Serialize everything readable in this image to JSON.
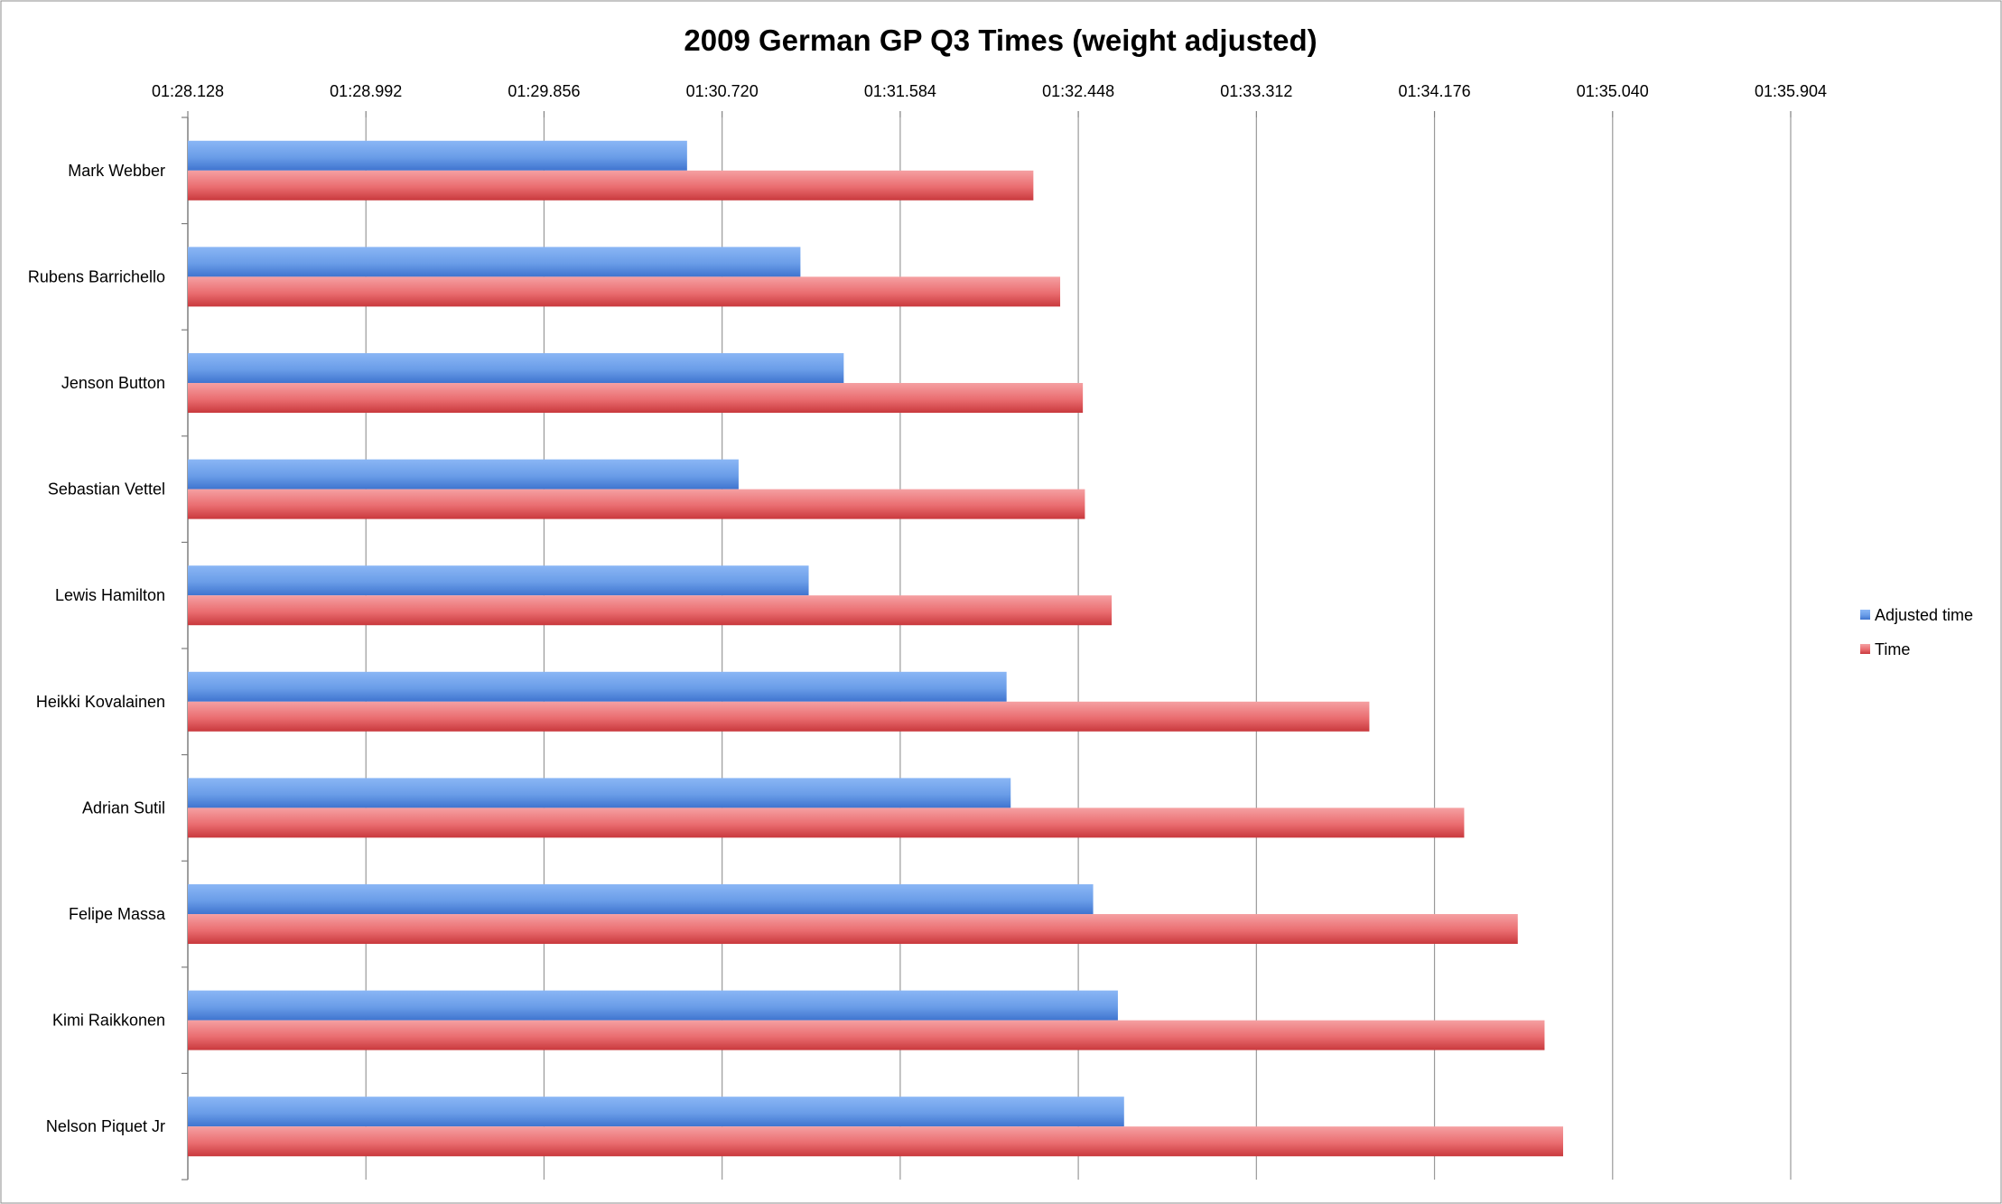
{
  "chart_data": {
    "type": "bar",
    "orientation": "horizontal",
    "title": "2009 German GP Q3 Times (weight adjusted)",
    "xlabel": "",
    "ylabel": "",
    "x_axis_position": "top",
    "xlim_seconds": [
      88.128,
      95.904
    ],
    "x_tick_labels": [
      "01:28.128",
      "01:28.992",
      "01:29.856",
      "01:30.720",
      "01:31.584",
      "01:32.448",
      "01:33.312",
      "01:34.176",
      "01:35.040",
      "01:35.904"
    ],
    "categories": [
      "Mark Webber",
      "Rubens Barrichello",
      "Jenson Button",
      "Sebastian Vettel",
      "Lewis Hamilton",
      "Heikki Kovalainen",
      "Adrian Sutil",
      "Felipe Massa",
      "Kimi Raikkonen",
      "Nelson Piquet Jr"
    ],
    "series": [
      {
        "name": "Adjusted time",
        "color": "#5a8fe0",
        "values_seconds": [
          90.55,
          91.1,
          91.31,
          90.8,
          91.14,
          92.1,
          92.12,
          92.52,
          92.64,
          92.67
        ]
      },
      {
        "name": "Time",
        "color": "#e05a5e",
        "values_seconds": [
          92.23,
          92.36,
          92.47,
          92.48,
          92.61,
          93.86,
          94.32,
          94.58,
          94.71,
          94.8
        ]
      }
    ],
    "grid": "vertical",
    "legend": "right"
  }
}
